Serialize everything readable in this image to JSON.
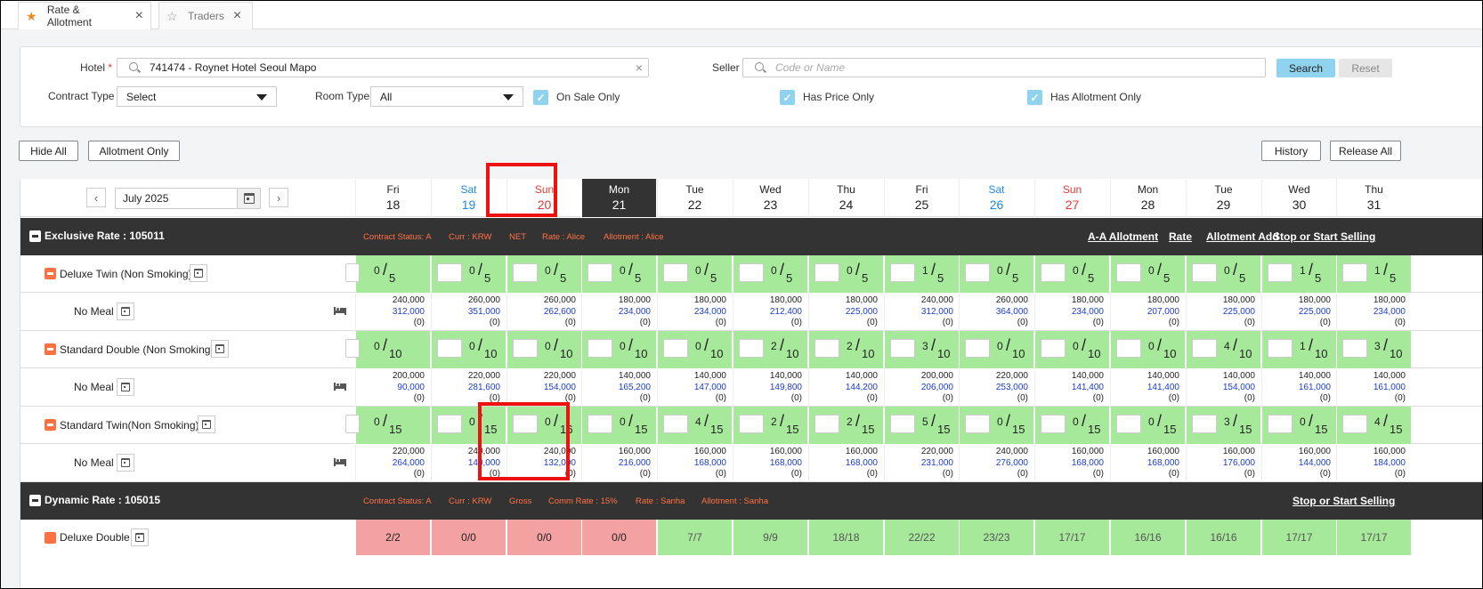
{
  "tabs": [
    {
      "label": "Rate & Allotment",
      "active": true,
      "icon": "star-filled-icon"
    },
    {
      "label": "Traders",
      "active": false,
      "icon": "star-outline-icon"
    }
  ],
  "filters": {
    "hotel_label": "Hotel",
    "required_mark": "*",
    "hotel_value": "741474 - Roynet Hotel Seoul Mapo",
    "seller_label": "Seller",
    "seller_placeholder": "Code or Name",
    "contract_type_label": "Contract Type",
    "contract_type_value": "Select",
    "room_type_label": "Room Type",
    "room_type_value": "All",
    "on_sale_only": "On Sale Only",
    "has_price_only": "Has Price Only",
    "has_allotment_only": "Has Allotment Only",
    "search": "Search",
    "reset": "Reset",
    "check_mark": "✓",
    "clear": "×"
  },
  "toolbar": {
    "hide_all": "Hide All",
    "allotment_only": "Allotment Only",
    "history": "History",
    "release_all": "Release All"
  },
  "calendar": {
    "month": "July 2025",
    "prev": "‹",
    "next": "›",
    "days": [
      {
        "dow": "Fri",
        "num": "18",
        "type": "weekday"
      },
      {
        "dow": "Sat",
        "num": "19",
        "type": "sat"
      },
      {
        "dow": "Sun",
        "num": "20",
        "type": "sun"
      },
      {
        "dow": "Mon",
        "num": "21",
        "type": "today"
      },
      {
        "dow": "Tue",
        "num": "22",
        "type": "weekday"
      },
      {
        "dow": "Wed",
        "num": "23",
        "type": "weekday"
      },
      {
        "dow": "Thu",
        "num": "24",
        "type": "weekday"
      },
      {
        "dow": "Fri",
        "num": "25",
        "type": "weekday"
      },
      {
        "dow": "Sat",
        "num": "26",
        "type": "sat"
      },
      {
        "dow": "Sun",
        "num": "27",
        "type": "sun"
      },
      {
        "dow": "Mon",
        "num": "28",
        "type": "weekday"
      },
      {
        "dow": "Tue",
        "num": "29",
        "type": "weekday"
      },
      {
        "dow": "Wed",
        "num": "30",
        "type": "weekday"
      },
      {
        "dow": "Thu",
        "num": "31",
        "type": "weekday"
      }
    ]
  },
  "exclusive": {
    "title": "Exclusive Rate : 105011",
    "meta": [
      "Contract Status: A",
      "Curr : KRW",
      "NET",
      "Rate : Alice",
      "Allotment : Alice"
    ],
    "links": [
      "A-A Allotment",
      "Rate",
      "Allotment Add",
      "Stop or Start Selling"
    ],
    "rooms": [
      {
        "name": "Deluxe Twin (Non Smoking)",
        "meal": "No Meal",
        "allot": [
          [
            "0",
            "5"
          ],
          [
            "0",
            "5"
          ],
          [
            "0",
            "5"
          ],
          [
            "0",
            "5"
          ],
          [
            "0",
            "5"
          ],
          [
            "0",
            "5"
          ],
          [
            "0",
            "5"
          ],
          [
            "1",
            "5"
          ],
          [
            "0",
            "5"
          ],
          [
            "0",
            "5"
          ],
          [
            "0",
            "5"
          ],
          [
            "0",
            "5"
          ],
          [
            "1",
            "5"
          ],
          [
            "1",
            "5"
          ]
        ],
        "prices": [
          [
            "240,000",
            "312,000",
            "(0)"
          ],
          [
            "260,000",
            "351,000",
            "(0)"
          ],
          [
            "260,000",
            "262,600",
            "(0)"
          ],
          [
            "180,000",
            "234,000",
            "(0)"
          ],
          [
            "180,000",
            "234,000",
            "(0)"
          ],
          [
            "180,000",
            "212,400",
            "(0)"
          ],
          [
            "180,000",
            "225,000",
            "(0)"
          ],
          [
            "240,000",
            "312,000",
            "(0)"
          ],
          [
            "260,000",
            "364,000",
            "(0)"
          ],
          [
            "180,000",
            "234,000",
            "(0)"
          ],
          [
            "180,000",
            "207,000",
            "(0)"
          ],
          [
            "180,000",
            "225,000",
            "(0)"
          ],
          [
            "180,000",
            "225,000",
            "(0)"
          ],
          [
            "180,000",
            "234,000",
            "(0)"
          ]
        ]
      },
      {
        "name": "Standard Double (Non Smoking)",
        "meal": "No Meal",
        "allot": [
          [
            "0",
            "10"
          ],
          [
            "0",
            "10"
          ],
          [
            "0",
            "10"
          ],
          [
            "0",
            "10"
          ],
          [
            "0",
            "10"
          ],
          [
            "2",
            "10"
          ],
          [
            "2",
            "10"
          ],
          [
            "3",
            "10"
          ],
          [
            "0",
            "10"
          ],
          [
            "0",
            "10"
          ],
          [
            "0",
            "10"
          ],
          [
            "4",
            "10"
          ],
          [
            "1",
            "10"
          ],
          [
            "3",
            "10"
          ]
        ],
        "prices": [
          [
            "200,000",
            "90,000",
            "(0)"
          ],
          [
            "220,000",
            "281,600",
            "(0)"
          ],
          [
            "220,000",
            "154,000",
            "(0)"
          ],
          [
            "140,000",
            "165,200",
            "(0)"
          ],
          [
            "140,000",
            "147,000",
            "(0)"
          ],
          [
            "140,000",
            "149,800",
            "(0)"
          ],
          [
            "140,000",
            "144,200",
            "(0)"
          ],
          [
            "200,000",
            "206,000",
            "(0)"
          ],
          [
            "220,000",
            "253,000",
            "(0)"
          ],
          [
            "140,000",
            "141,400",
            "(0)"
          ],
          [
            "140,000",
            "141,400",
            "(0)"
          ],
          [
            "140,000",
            "154,000",
            "(0)"
          ],
          [
            "140,000",
            "161,000",
            "(0)"
          ],
          [
            "140,000",
            "161,000",
            "(0)"
          ]
        ]
      },
      {
        "name": "Standard Twin(Non Smoking)",
        "meal": "No Meal",
        "allot": [
          [
            "0",
            "15"
          ],
          [
            "0",
            "15"
          ],
          [
            "0",
            "16"
          ],
          [
            "0",
            "15"
          ],
          [
            "4",
            "15"
          ],
          [
            "2",
            "15"
          ],
          [
            "2",
            "15"
          ],
          [
            "5",
            "15"
          ],
          [
            "0",
            "15"
          ],
          [
            "0",
            "15"
          ],
          [
            "0",
            "15"
          ],
          [
            "3",
            "15"
          ],
          [
            "0",
            "15"
          ],
          [
            "4",
            "15"
          ]
        ],
        "prices": [
          [
            "220,000",
            "264,000",
            "(0)"
          ],
          [
            "240,000",
            "140,000",
            "(0)"
          ],
          [
            "240,000",
            "132,000",
            "(0)"
          ],
          [
            "160,000",
            "216,000",
            "(0)"
          ],
          [
            "160,000",
            "168,000",
            "(0)"
          ],
          [
            "160,000",
            "168,000",
            "(0)"
          ],
          [
            "160,000",
            "168,000",
            "(0)"
          ],
          [
            "220,000",
            "231,000",
            "(0)"
          ],
          [
            "240,000",
            "276,000",
            "(0)"
          ],
          [
            "160,000",
            "168,000",
            "(0)"
          ],
          [
            "160,000",
            "168,000",
            "(0)"
          ],
          [
            "160,000",
            "176,000",
            "(0)"
          ],
          [
            "160,000",
            "144,000",
            "(0)"
          ],
          [
            "160,000",
            "184,000",
            "(0)"
          ]
        ]
      }
    ]
  },
  "dynamic": {
    "title": "Dynamic Rate : 105015",
    "meta": [
      "Contract Status: A",
      "Curr : KRW",
      "Gross",
      "Comm Rate : 15%",
      "Rate : Sanha",
      "Allotment : Sanha"
    ],
    "links": [
      "Stop or Start Selling"
    ],
    "room": {
      "name": "Deluxe Double",
      "cells": [
        {
          "v": "2/2",
          "s": "red"
        },
        {
          "v": "0/0",
          "s": "red"
        },
        {
          "v": "0/0",
          "s": "red"
        },
        {
          "v": "0/0",
          "s": "red"
        },
        {
          "v": "7/7",
          "s": "green"
        },
        {
          "v": "9/9",
          "s": "green"
        },
        {
          "v": "18/18",
          "s": "green"
        },
        {
          "v": "22/22",
          "s": "green"
        },
        {
          "v": "23/23",
          "s": "green"
        },
        {
          "v": "17/17",
          "s": "green"
        },
        {
          "v": "16/16",
          "s": "green"
        },
        {
          "v": "16/16",
          "s": "green"
        },
        {
          "v": "17/17",
          "s": "green"
        },
        {
          "v": "17/17",
          "s": "green"
        }
      ]
    }
  },
  "colors": {
    "accent": "#8fd3ef",
    "dark_header": "#333333",
    "available": "#a6e99a",
    "closed": "#f4a1a1",
    "meta_orange": "#ff7043",
    "price_blue": "#1a3bd3",
    "highlight": "#e11111"
  }
}
